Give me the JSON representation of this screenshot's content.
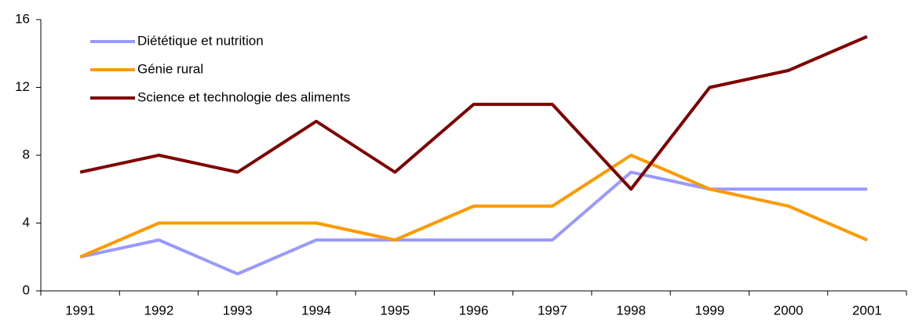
{
  "chart_data": {
    "type": "line",
    "categories": [
      "1991",
      "1992",
      "1993",
      "1994",
      "1995",
      "1996",
      "1997",
      "1998",
      "1999",
      "2000",
      "2001"
    ],
    "series": [
      {
        "name": "Diététique et nutrition",
        "color": "#9999ff",
        "values": [
          2,
          3,
          1,
          3,
          3,
          3,
          3,
          7,
          6,
          6,
          6
        ]
      },
      {
        "name": "Génie rural",
        "color": "#ff9900",
        "values": [
          2,
          4,
          4,
          4,
          3,
          5,
          5,
          8,
          6,
          5,
          3
        ]
      },
      {
        "name": "Science et technologie des aliments",
        "color": "#800000",
        "values": [
          7,
          8,
          7,
          10,
          7,
          11,
          11,
          6,
          12,
          13,
          15
        ]
      }
    ],
    "ylim": [
      0,
      16
    ],
    "yticks": [
      0,
      4,
      8,
      12,
      16
    ],
    "grid": false,
    "legend": "top-left"
  }
}
